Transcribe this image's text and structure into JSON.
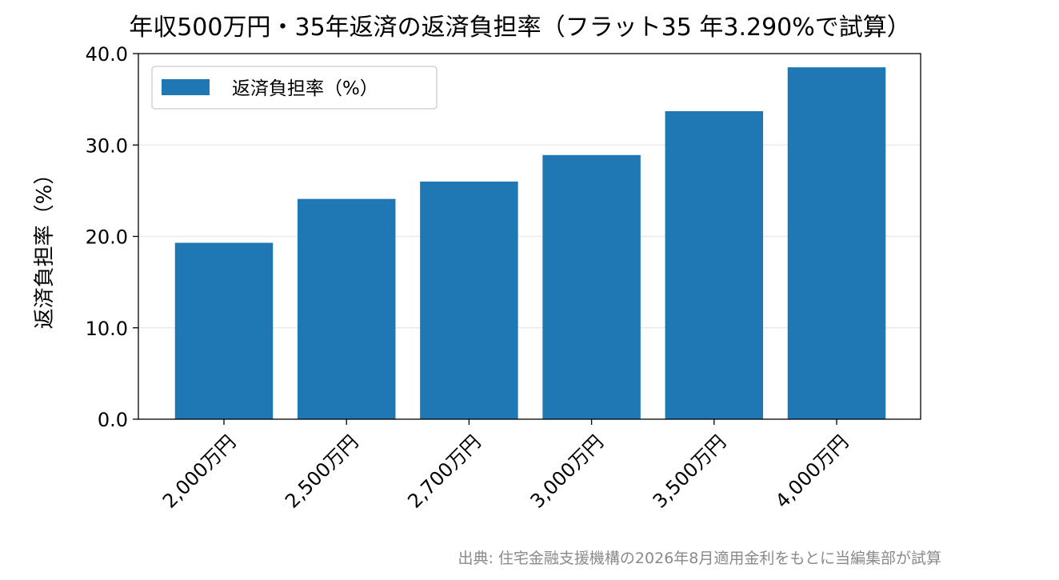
{
  "chart_data": {
    "type": "bar",
    "title": "年収500万円・35年返済の返済負担率（フラット35 年3.290%で試算）",
    "xlabel": "",
    "ylabel": "返済負担率（%）",
    "categories": [
      "2,000万円",
      "2,500万円",
      "2,700万円",
      "3,000万円",
      "3,500万円",
      "4,000万円"
    ],
    "series": [
      {
        "name": "返済負担率（%）",
        "values": [
          19.3,
          24.1,
          26.0,
          28.9,
          33.7,
          38.5
        ],
        "color": "#1f77b4"
      }
    ],
    "ylim": [
      0,
      40
    ],
    "yticks": [
      0,
      10,
      20,
      30,
      40
    ],
    "ytick_labels": [
      "0.0",
      "10.0",
      "20.0",
      "30.0",
      "40.0"
    ],
    "grid": "horizontal",
    "legend_position": "top-left"
  },
  "source_note": "出典: 住宅金融支援機構の2026年8月適用金利をもとに当編集部が試算",
  "colors": {
    "bar": "#1f77b4",
    "grid": "#e6e6e6",
    "axis": "#000000",
    "source": "#8a8a8a"
  }
}
